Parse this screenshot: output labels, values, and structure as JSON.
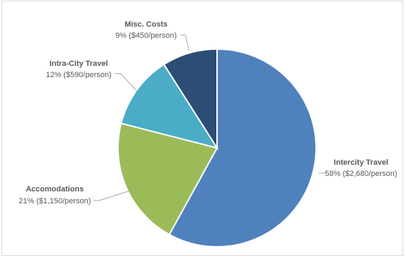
{
  "chart_data": {
    "type": "pie",
    "title": "",
    "slices": [
      {
        "name": "Intercity Travel",
        "value": 58,
        "label": "58% ($2,680/person)",
        "color": "#4f81bd"
      },
      {
        "name": "Accomodations",
        "value": 21,
        "label": "21% ($1,150/person)",
        "color": "#9bbb59"
      },
      {
        "name": "Intra-City Travel",
        "value": 12,
        "label": "12% ($590/person)",
        "color": "#4bacc6"
      },
      {
        "name": "Misc. Costs",
        "value": 9,
        "label": "9% ($450/person)",
        "color": "#2c4d75"
      }
    ],
    "start": "12 o'clock",
    "direction": "clockwise",
    "legend": "none",
    "data_labels": "outside with leader lines"
  }
}
